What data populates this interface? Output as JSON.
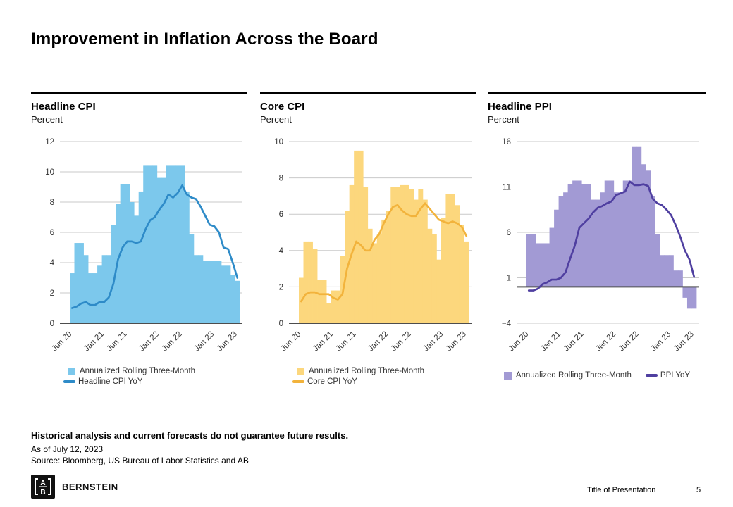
{
  "slide": {
    "title": "Improvement in Inflation Across the Board",
    "footer": {
      "disclaimer": "Historical analysis and current forecasts do not guarantee future results.",
      "as_of": "As of July 12, 2023",
      "source": "Source: Bloomberg, US Bureau of Labor Statistics and AB"
    },
    "brand": "BERNSTEIN",
    "logo_letters": {
      "top": "A",
      "bottom": "B"
    },
    "presentation_title": "Title of Presentation",
    "page_number": "5"
  },
  "chart_data": [
    {
      "type": "bar",
      "subtype": "bar-plus-line",
      "title": "Headline CPI",
      "ylabel": "Percent",
      "bar_color": "#7CC8EC",
      "line_color": "#2E8BC8",
      "ylim": [
        0,
        12
      ],
      "y_ticks": [
        0,
        2,
        4,
        6,
        8,
        10,
        12
      ],
      "x_tick_labels": [
        "Jun 20",
        "Jan 21",
        "Jun 21",
        "Jan 22",
        "Jun 22",
        "Jan 23",
        "Jun 23"
      ],
      "x_tick_positions": [
        0,
        7,
        12,
        19,
        24,
        31,
        36
      ],
      "x_range": "monthly, Jun 2020 - Jun 2023",
      "grid": true,
      "legend_position": "bottom-left",
      "series": [
        {
          "name": "Annualized Rolling Three-Month",
          "style": "bar",
          "values": [
            3.3,
            5.3,
            5.3,
            4.5,
            3.3,
            3.3,
            3.8,
            4.5,
            4.5,
            6.5,
            7.9,
            9.2,
            9.2,
            8.0,
            7.1,
            8.7,
            10.4,
            10.4,
            10.4,
            9.6,
            9.6,
            10.4,
            10.4,
            10.4,
            10.4,
            8.7,
            5.9,
            4.5,
            4.5,
            4.1,
            4.1,
            4.1,
            4.1,
            3.8,
            3.8,
            3.2,
            2.8
          ]
        },
        {
          "name": "Headline CPI YoY",
          "style": "line",
          "values": [
            1.0,
            1.1,
            1.3,
            1.4,
            1.2,
            1.2,
            1.4,
            1.4,
            1.7,
            2.6,
            4.2,
            5.0,
            5.4,
            5.4,
            5.3,
            5.4,
            6.2,
            6.8,
            7.0,
            7.5,
            7.9,
            8.5,
            8.3,
            8.6,
            9.1,
            8.5,
            8.3,
            8.2,
            7.7,
            7.1,
            6.5,
            6.4,
            6.0,
            5.0,
            4.9,
            4.0,
            3.0
          ]
        }
      ]
    },
    {
      "type": "bar",
      "subtype": "bar-plus-line",
      "title": "Core CPI",
      "ylabel": "Percent",
      "bar_color": "#FCD77D",
      "line_color": "#F2B33C",
      "ylim": [
        0,
        10
      ],
      "y_ticks": [
        0,
        2,
        4,
        6,
        8,
        10
      ],
      "x_tick_labels": [
        "Jun 20",
        "Jan 21",
        "Jun 21",
        "Jan 22",
        "Jun 22",
        "Jan 23",
        "Jun 23"
      ],
      "x_tick_positions": [
        0,
        7,
        12,
        19,
        24,
        31,
        36
      ],
      "x_range": "monthly, Jun 2020 - Jun 2023",
      "grid": true,
      "legend_position": "bottom-left",
      "series": [
        {
          "name": "Annualized Rolling Three-Month",
          "style": "bar",
          "values": [
            2.5,
            4.5,
            4.5,
            4.1,
            2.4,
            2.4,
            1.1,
            1.8,
            1.8,
            3.7,
            6.2,
            7.6,
            9.5,
            9.5,
            7.5,
            5.2,
            4.4,
            4.9,
            5.7,
            6.2,
            7.5,
            7.5,
            7.6,
            7.6,
            7.4,
            6.8,
            7.4,
            6.8,
            5.2,
            4.9,
            3.5,
            5.8,
            7.1,
            7.1,
            6.5,
            5.4,
            4.5
          ]
        },
        {
          "name": "Core CPI YoY",
          "style": "line",
          "values": [
            1.2,
            1.6,
            1.7,
            1.7,
            1.6,
            1.6,
            1.6,
            1.4,
            1.3,
            1.6,
            3.0,
            3.8,
            4.5,
            4.3,
            4.0,
            4.0,
            4.6,
            4.9,
            5.5,
            6.0,
            6.4,
            6.5,
            6.2,
            6.0,
            5.9,
            5.9,
            6.3,
            6.6,
            6.3,
            6.0,
            5.7,
            5.6,
            5.5,
            5.6,
            5.5,
            5.3,
            4.8
          ]
        }
      ]
    },
    {
      "type": "bar",
      "subtype": "bar-plus-line",
      "title": "Headline PPI",
      "ylabel": "Percent",
      "bar_color": "#A29AD4",
      "line_color": "#4F3FA0",
      "ylim": [
        -4,
        16
      ],
      "y_ticks": [
        -4,
        1,
        6,
        11,
        16
      ],
      "x_tick_labels": [
        "Jun 20",
        "Jan 21",
        "Jun 21",
        "Jan 22",
        "Jun 22",
        "Jan 23",
        "Jun 23"
      ],
      "x_tick_positions": [
        0,
        7,
        12,
        19,
        24,
        31,
        36
      ],
      "x_range": "monthly, Jun 2020 - Jun 2023",
      "grid": true,
      "legend_position": "bottom-center",
      "series": [
        {
          "name": "Annualized Rolling Three-Month",
          "style": "bar",
          "values": [
            5.8,
            5.8,
            4.8,
            4.8,
            4.8,
            6.5,
            8.5,
            10.0,
            10.4,
            11.3,
            11.7,
            11.7,
            11.3,
            11.3,
            9.6,
            9.6,
            10.4,
            11.7,
            11.7,
            10.4,
            10.4,
            11.7,
            11.7,
            15.4,
            15.4,
            13.5,
            12.8,
            10.0,
            5.8,
            3.5,
            3.5,
            3.5,
            1.8,
            1.8,
            -1.2,
            -2.4,
            -2.4
          ]
        },
        {
          "name": "PPI YoY",
          "style": "line",
          "values": [
            -0.4,
            -0.4,
            -0.2,
            0.3,
            0.5,
            0.8,
            0.8,
            1.0,
            1.6,
            3.1,
            4.5,
            6.5,
            7.0,
            7.5,
            8.2,
            8.7,
            8.9,
            9.2,
            9.4,
            10.1,
            10.3,
            10.5,
            11.6,
            11.2,
            11.2,
            11.3,
            11.1,
            9.7,
            9.2,
            9.0,
            8.5,
            7.9,
            6.8,
            5.5,
            4.0,
            3.0,
            1.1
          ]
        }
      ]
    }
  ]
}
